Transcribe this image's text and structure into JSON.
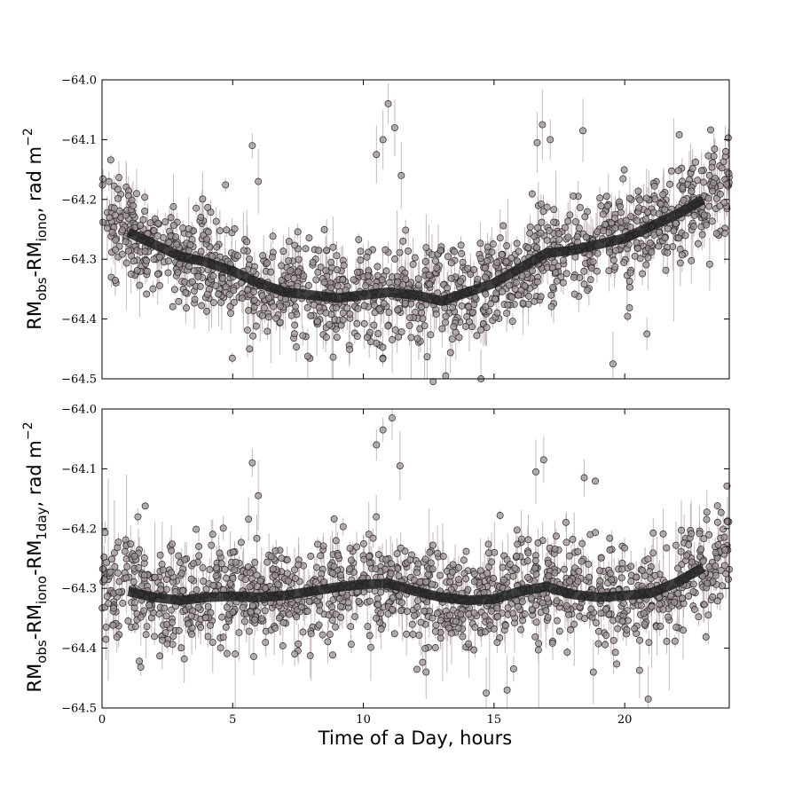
{
  "chart_data": [
    {
      "type": "scatter",
      "xlabel": "",
      "ylabel_main": "RM",
      "ylabel_parts": [
        {
          "text": "RM",
          "sub": "obs"
        },
        {
          "text": "-RM",
          "sub": "iono"
        }
      ],
      "ylabel_unit": ", rad m",
      "ylabel_unit_sup": "−2",
      "xlim": [
        0,
        24
      ],
      "ylim": [
        -64.5,
        -64.0
      ],
      "x_ticks": [
        0,
        5,
        10,
        15,
        20
      ],
      "x_tick_labels": [],
      "y_ticks": [
        -64.5,
        -64.4,
        -64.3,
        -64.2,
        -64.1,
        -64.0
      ],
      "y_tick_labels": [
        "−64.5",
        "−64.4",
        "−64.3",
        "−64.2",
        "−64.1",
        "−64.0"
      ],
      "series": [
        {
          "role": "daily smoothed average",
          "x": [
            1.0,
            2.0,
            3.0,
            4.0,
            5.0,
            6.0,
            7.0,
            8.0,
            9.0,
            10.0,
            11.0,
            12.0,
            13.0,
            14.0,
            15.0,
            16.0,
            17.0,
            18.0,
            19.0,
            20.0,
            21.0,
            22.0,
            23.0
          ],
          "y": [
            -64.255,
            -64.275,
            -64.295,
            -64.305,
            -64.32,
            -64.34,
            -64.355,
            -64.36,
            -64.365,
            -64.36,
            -64.355,
            -64.36,
            -64.37,
            -64.355,
            -64.34,
            -64.315,
            -64.29,
            -64.285,
            -64.275,
            -64.265,
            -64.245,
            -64.225,
            -64.2
          ]
        }
      ],
      "scatter": {
        "seed": 7,
        "count": 1400,
        "x_range": [
          0,
          24
        ],
        "outliers": [
          {
            "x": 10.5,
            "y": -64.125
          },
          {
            "x": 10.75,
            "y": -64.1
          },
          {
            "x": 10.95,
            "y": -64.04
          },
          {
            "x": 11.2,
            "y": -64.08
          },
          {
            "x": 11.45,
            "y": -64.16
          },
          {
            "x": 5.75,
            "y": -64.11
          },
          {
            "x": 5.98,
            "y": -64.17
          },
          {
            "x": 16.65,
            "y": -64.105
          },
          {
            "x": 16.85,
            "y": -64.075
          },
          {
            "x": 17.15,
            "y": -64.1
          },
          {
            "x": 18.4,
            "y": -64.085
          },
          {
            "x": 19.55,
            "y": -64.475
          },
          {
            "x": 20.85,
            "y": -64.425
          },
          {
            "x": 13.15,
            "y": -64.495
          },
          {
            "x": 14.5,
            "y": -64.5
          }
        ]
      }
    },
    {
      "type": "scatter",
      "xlabel": "Time of a Day, hours",
      "ylabel_parts": [
        {
          "text": "RM",
          "sub": "obs"
        },
        {
          "text": "-RM",
          "sub": "iono"
        },
        {
          "text": "-RM",
          "sub": "1day"
        }
      ],
      "ylabel_unit": ", rad m",
      "ylabel_unit_sup": "−2",
      "xlim": [
        0,
        24
      ],
      "ylim": [
        -64.5,
        -64.0
      ],
      "x_ticks": [
        0,
        5,
        10,
        15,
        20
      ],
      "x_tick_labels": [
        "0",
        "5",
        "10",
        "15",
        "20"
      ],
      "y_ticks": [
        -64.5,
        -64.4,
        -64.3,
        -64.2,
        -64.1,
        -64.0
      ],
      "y_tick_labels": [
        "−64.5",
        "−64.4",
        "−64.3",
        "−64.2",
        "−64.1",
        "−64.0"
      ],
      "series": [
        {
          "role": "daily smoothed average",
          "x": [
            1.0,
            2.0,
            3.0,
            4.0,
            5.0,
            6.0,
            7.0,
            8.0,
            9.0,
            10.0,
            11.0,
            12.0,
            13.0,
            14.0,
            15.0,
            16.0,
            17.0,
            18.0,
            19.0,
            20.0,
            21.0,
            22.0,
            23.0
          ],
          "y": [
            -64.305,
            -64.315,
            -64.32,
            -64.315,
            -64.313,
            -64.315,
            -64.312,
            -64.305,
            -64.298,
            -64.293,
            -64.292,
            -64.305,
            -64.315,
            -64.32,
            -64.318,
            -64.305,
            -64.297,
            -64.31,
            -64.315,
            -64.312,
            -64.308,
            -64.29,
            -64.265
          ]
        }
      ],
      "scatter": {
        "seed": 11,
        "count": 1400,
        "x_range": [
          0,
          24
        ],
        "outliers": [
          {
            "x": 10.5,
            "y": -64.06
          },
          {
            "x": 10.75,
            "y": -64.035
          },
          {
            "x": 11.1,
            "y": -64.015
          },
          {
            "x": 11.4,
            "y": -64.095
          },
          {
            "x": 5.75,
            "y": -64.09
          },
          {
            "x": 5.98,
            "y": -64.145
          },
          {
            "x": 16.6,
            "y": -64.105
          },
          {
            "x": 16.9,
            "y": -64.085
          },
          {
            "x": 18.45,
            "y": -64.115
          },
          {
            "x": 20.9,
            "y": -64.485
          },
          {
            "x": 14.7,
            "y": -64.475
          },
          {
            "x": 15.5,
            "y": -64.47
          },
          {
            "x": 12.4,
            "y": -64.44
          },
          {
            "x": 18.8,
            "y": -64.44
          }
        ]
      }
    }
  ]
}
